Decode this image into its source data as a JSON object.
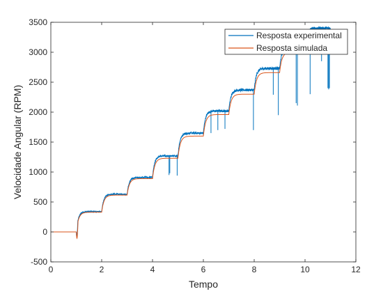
{
  "chart_data": {
    "type": "line",
    "xlabel": "Tempo",
    "ylabel": "Velocidade Angular (RPM)",
    "xlim": [
      0,
      12
    ],
    "ylim": [
      -500,
      3500
    ],
    "xticks": [
      "0",
      "2",
      "4",
      "6",
      "8",
      "10",
      "12"
    ],
    "yticks": [
      "-500",
      "0",
      "500",
      "1000",
      "1500",
      "2000",
      "2500",
      "3000",
      "3500"
    ],
    "grid": false,
    "legend_position": "top-right",
    "step_times": [
      1,
      2,
      3,
      4,
      5,
      6,
      7,
      8,
      9,
      10
    ],
    "series": [
      {
        "name": "Resposta experimental",
        "color": "#0072BD",
        "levels": [
          0,
          340,
          630,
          910,
          1270,
          1650,
          2020,
          2370,
          2730,
          3070,
          3400
        ],
        "x_end": 11.0,
        "dips": [
          {
            "x": 4.65,
            "y": 950
          },
          {
            "x": 4.68,
            "y": 980
          },
          {
            "x": 4.97,
            "y": 940
          },
          {
            "x": 6.3,
            "y": 1650
          },
          {
            "x": 6.57,
            "y": 1700
          },
          {
            "x": 6.85,
            "y": 1720
          },
          {
            "x": 7.97,
            "y": 1700
          },
          {
            "x": 8.75,
            "y": 2290
          },
          {
            "x": 8.95,
            "y": 1950
          },
          {
            "x": 9.65,
            "y": 2150
          },
          {
            "x": 9.7,
            "y": 2110
          },
          {
            "x": 10.2,
            "y": 2300
          },
          {
            "x": 10.65,
            "y": 2850
          },
          {
            "x": 10.9,
            "y": 2400
          },
          {
            "x": 10.93,
            "y": 2380
          },
          {
            "x": 10.96,
            "y": 2400
          }
        ]
      },
      {
        "name": "Resposta simulada",
        "color": "#D95319",
        "levels": [
          0,
          330,
          615,
          890,
          1230,
          1600,
          1960,
          2300,
          2660,
          3000,
          3330
        ],
        "x_end": 11.0,
        "initial_dip": -150
      }
    ]
  }
}
